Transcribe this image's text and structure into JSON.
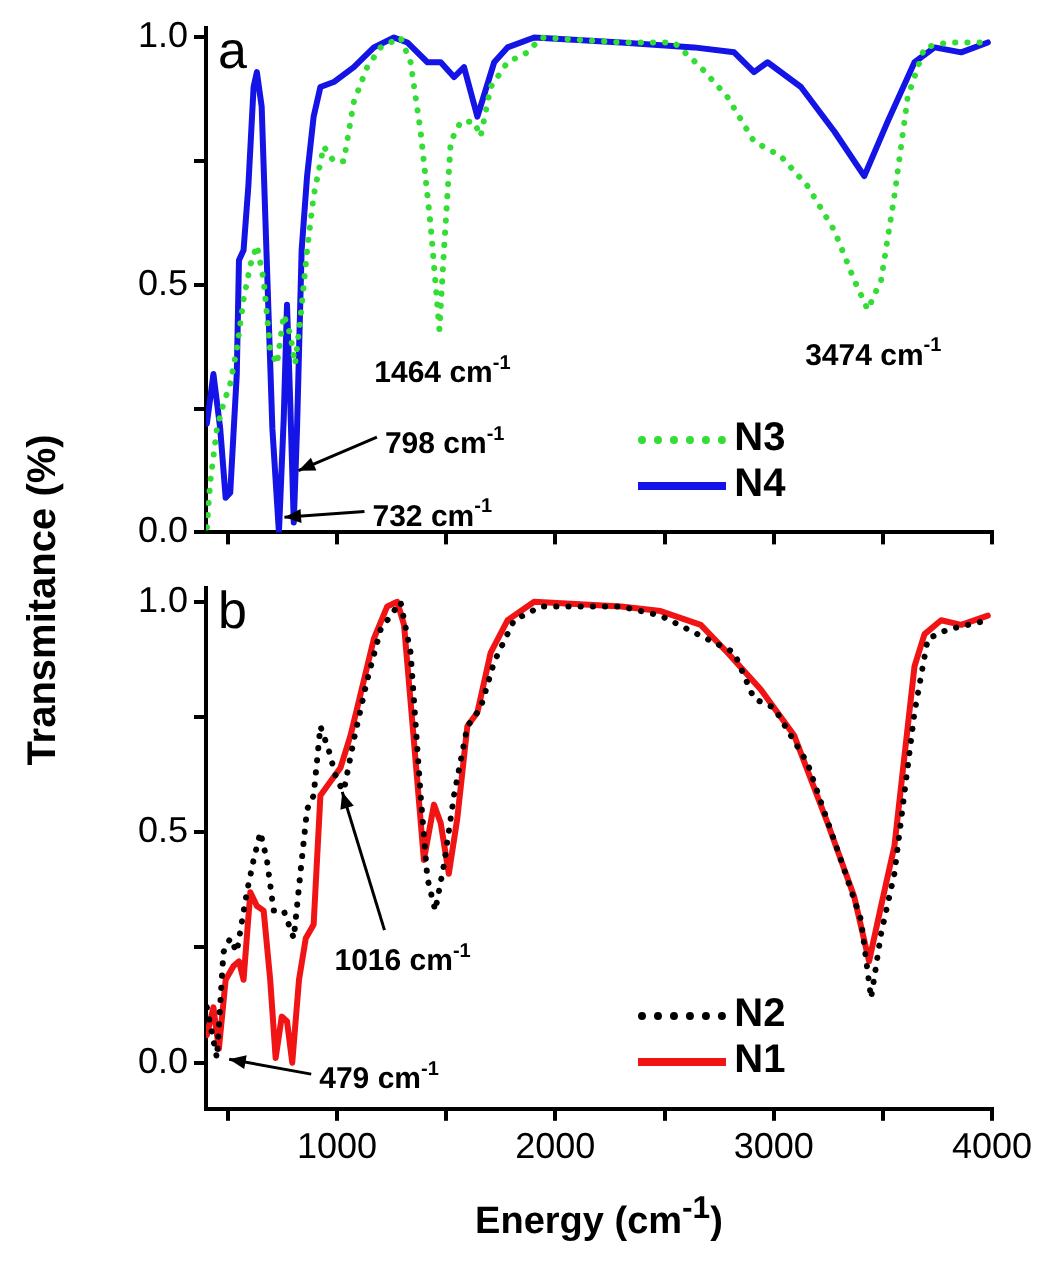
{
  "chart_data": [
    {
      "type": "line",
      "title": "a",
      "ylabel": "Transmitance (%)",
      "xlim": [
        400,
        4000
      ],
      "ylim": [
        0,
        1.02
      ],
      "xticks": [
        {
          "value": 500,
          "label": null
        },
        {
          "value": 1000,
          "label": null
        },
        {
          "value": 1500,
          "label": null
        },
        {
          "value": 2000,
          "label": null
        },
        {
          "value": 2500,
          "label": null
        },
        {
          "value": 3000,
          "label": null
        },
        {
          "value": 3500,
          "label": null
        },
        {
          "value": 4000,
          "label": null
        }
      ],
      "yticks": [
        {
          "value": 0,
          "label": "0.0"
        },
        {
          "value": 0.25,
          "label": null
        },
        0.5,
        {
          "value": 0.75,
          "label": null
        },
        {
          "value": 1,
          "label": "1.0"
        }
      ],
      "tick_labels": "y",
      "legend": "bottom right",
      "annotations": [
        {
          "text": "1464 cm$^{-1}$",
          "x": 1464,
          "y": 0.4
        },
        {
          "text": "3474 cm$^{-1}$",
          "x": 3474,
          "y": 0.44
        },
        {
          "text": "798 cm$^{-1}$",
          "x": 798,
          "y": 0.12
        },
        {
          "text": "732 cm$^{-1}$",
          "x": 732,
          "y": 0.03
        }
      ],
      "series": [
        {
          "name": "N3",
          "color": "#33dd33",
          "line_style": "dotted",
          "x": [
            404,
            419,
            450,
            480,
            511,
            541,
            572,
            603,
            633,
            664,
            694,
            725,
            756,
            786,
            808,
            832,
            863,
            893,
            939,
            985,
            1031,
            1077,
            1138,
            1200,
            1291,
            1337,
            1383,
            1429,
            1469,
            1490,
            1521,
            1567,
            1628,
            1658,
            1704,
            1781,
            1873,
            1934,
            2301,
            2543,
            2666,
            2788,
            2910,
            3033,
            3155,
            3278,
            3369,
            3431,
            3492,
            3553,
            3614,
            3691,
            3798,
            3981
          ],
          "values": [
            0.01,
            0.1,
            0.21,
            0.26,
            0.3,
            0.37,
            0.47,
            0.54,
            0.58,
            0.51,
            0.37,
            0.34,
            0.44,
            0.4,
            0.34,
            0.43,
            0.57,
            0.68,
            0.78,
            0.75,
            0.75,
            0.87,
            0.94,
            0.98,
            1.0,
            0.95,
            0.81,
            0.62,
            0.41,
            0.57,
            0.79,
            0.83,
            0.83,
            0.8,
            0.9,
            0.95,
            0.97,
            1.0,
            0.99,
            0.99,
            0.94,
            0.88,
            0.79,
            0.76,
            0.7,
            0.61,
            0.51,
            0.45,
            0.51,
            0.68,
            0.88,
            0.98,
            0.99,
            0.99
          ]
        },
        {
          "name": "N4",
          "color": "#1414e6",
          "line_style": "solid",
          "x": [
            404,
            434,
            465,
            490,
            511,
            541,
            551,
            572,
            594,
            618,
            633,
            655,
            679,
            704,
            734,
            756,
            771,
            786,
            802,
            817,
            838,
            863,
            893,
            924,
            985,
            1077,
            1169,
            1261,
            1322,
            1414,
            1475,
            1536,
            1582,
            1643,
            1720,
            1781,
            1903,
            2301,
            2635,
            2819,
            2910,
            2972,
            3125,
            3278,
            3415,
            3522,
            3645,
            3737,
            3859,
            3981
          ],
          "values": [
            0.22,
            0.32,
            0.21,
            0.07,
            0.08,
            0.32,
            0.55,
            0.57,
            0.7,
            0.9,
            0.93,
            0.86,
            0.54,
            0.21,
            0.0,
            0.23,
            0.46,
            0.26,
            0.02,
            0.21,
            0.57,
            0.72,
            0.84,
            0.9,
            0.91,
            0.94,
            0.98,
            1.0,
            0.99,
            0.95,
            0.95,
            0.92,
            0.94,
            0.84,
            0.95,
            0.98,
            1.0,
            0.99,
            0.98,
            0.97,
            0.93,
            0.95,
            0.9,
            0.81,
            0.72,
            0.83,
            0.95,
            0.98,
            0.97,
            0.99
          ]
        }
      ]
    },
    {
      "type": "line",
      "title": "b",
      "xlabel": "Energy (cm$^{-1}$)",
      "xlim": [
        400,
        4000
      ],
      "ylim": [
        -0.1,
        1.03
      ],
      "xticks": [
        {
          "value": 500,
          "label": null
        },
        1000,
        {
          "value": 1500,
          "label": null
        },
        2000,
        {
          "value": 2500,
          "label": null
        },
        3000,
        {
          "value": 3500,
          "label": null
        },
        4000
      ],
      "yticks": [
        {
          "value": 0,
          "label": "0.0"
        },
        {
          "value": 0.25,
          "label": null
        },
        0.5,
        {
          "value": 0.75,
          "label": null
        },
        {
          "value": 1,
          "label": "1.0"
        }
      ],
      "legend": "bottom right",
      "annotations": [
        {
          "text": "1016 cm$^{-1}$",
          "x": 1016,
          "y": 0.6
        },
        {
          "text": "479 cm$^{-1}$",
          "x": 479,
          "y": 0.01
        }
      ],
      "series": [
        {
          "name": "N2",
          "color": "#000000",
          "line_style": "dotted",
          "x": [
            404,
            450,
            480,
            511,
            541,
            587,
            618,
            649,
            679,
            710,
            756,
            802,
            832,
            863,
            893,
            924,
            961,
            1001,
            1031,
            1077,
            1138,
            1200,
            1291,
            1337,
            1383,
            1414,
            1450,
            1490,
            1536,
            1597,
            1658,
            1720,
            1811,
            1934,
            2301,
            2482,
            2819,
            2910,
            3002,
            3155,
            3308,
            3400,
            3446,
            3492,
            3553,
            3645,
            3706,
            3798,
            3981
          ],
          "values": [
            0.12,
            0.01,
            0.24,
            0.27,
            0.24,
            0.37,
            0.44,
            0.5,
            0.44,
            0.33,
            0.33,
            0.27,
            0.41,
            0.55,
            0.58,
            0.73,
            0.68,
            0.61,
            0.59,
            0.7,
            0.83,
            0.94,
            1.0,
            0.89,
            0.58,
            0.4,
            0.33,
            0.43,
            0.58,
            0.73,
            0.77,
            0.87,
            0.96,
            0.99,
            0.99,
            0.97,
            0.89,
            0.79,
            0.77,
            0.65,
            0.44,
            0.31,
            0.14,
            0.28,
            0.41,
            0.76,
            0.92,
            0.94,
            0.96
          ]
        },
        {
          "name": "N1",
          "color": "#f01414",
          "line_style": "solid",
          "x": [
            404,
            434,
            459,
            490,
            526,
            551,
            572,
            603,
            633,
            664,
            694,
            719,
            747,
            771,
            795,
            826,
            857,
            893,
            924,
            970,
            1016,
            1062,
            1108,
            1169,
            1230,
            1276,
            1307,
            1352,
            1398,
            1444,
            1475,
            1512,
            1551,
            1597,
            1643,
            1704,
            1781,
            1903,
            2301,
            2482,
            2666,
            2788,
            2941,
            3094,
            3247,
            3369,
            3437,
            3492,
            3553,
            3645,
            3691,
            3767,
            3859,
            3981
          ],
          "values": [
            0.06,
            0.12,
            0.03,
            0.18,
            0.21,
            0.22,
            0.18,
            0.37,
            0.34,
            0.33,
            0.18,
            0.01,
            0.1,
            0.09,
            0.0,
            0.18,
            0.27,
            0.3,
            0.58,
            0.61,
            0.64,
            0.71,
            0.8,
            0.92,
            0.99,
            1.0,
            0.95,
            0.7,
            0.44,
            0.56,
            0.52,
            0.41,
            0.53,
            0.73,
            0.76,
            0.89,
            0.96,
            1.0,
            0.99,
            0.98,
            0.95,
            0.89,
            0.81,
            0.71,
            0.52,
            0.36,
            0.22,
            0.34,
            0.47,
            0.86,
            0.93,
            0.96,
            0.95,
            0.97
          ]
        }
      ]
    }
  ]
}
